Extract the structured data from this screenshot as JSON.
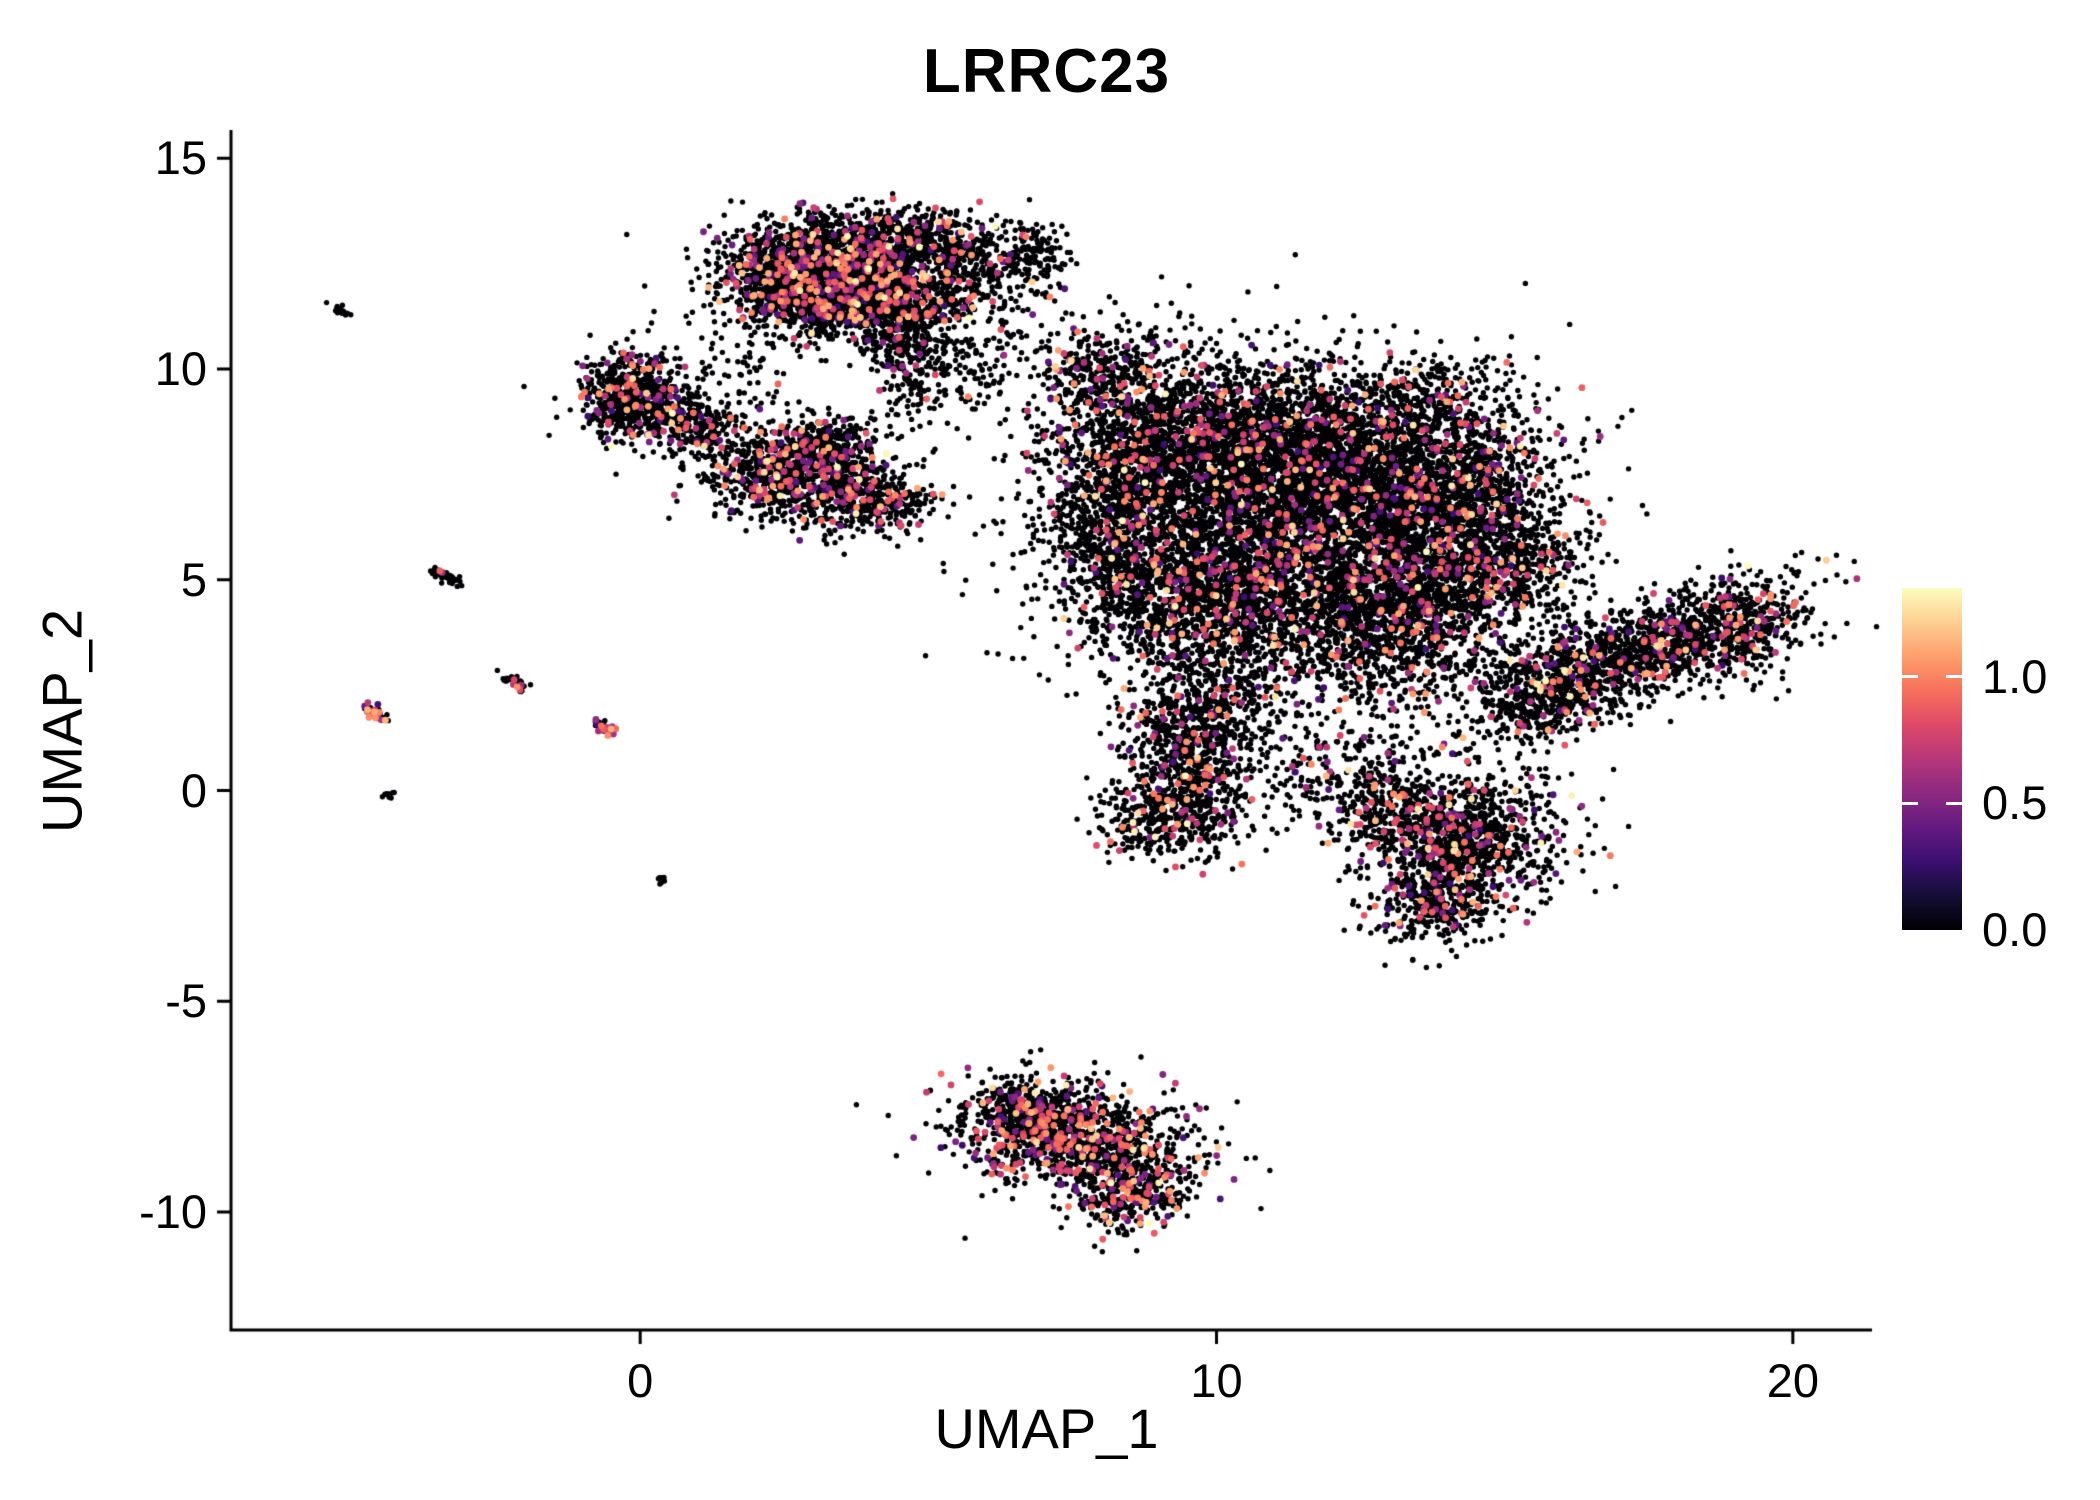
{
  "chart_data": {
    "type": "scatter",
    "title": "LRRC23",
    "xlabel": "UMAP_1",
    "ylabel": "UMAP_2",
    "xlim": [
      -7.1,
      21.2
    ],
    "ylim": [
      -12.8,
      16.1
    ],
    "x_ticks": [
      0,
      10,
      20
    ],
    "y_ticks": [
      -10,
      -5,
      0,
      5,
      10,
      15
    ],
    "grid": false,
    "background": "#ffffff",
    "axis_color": "#000000",
    "point_color_zero": "#000004",
    "colorbar": {
      "position": "right",
      "min": 0,
      "max": 1.35,
      "ticks": [
        1.0,
        0.5,
        0.0
      ],
      "tick_labels": [
        "1.0",
        "0.5",
        "0.0"
      ],
      "colormap": "magma",
      "colors": [
        "#000004",
        "#140e36",
        "#3b0f70",
        "#641a80",
        "#8c2981",
        "#b73779",
        "#de4968",
        "#f7705c",
        "#fe9f6d",
        "#fecf92",
        "#fcfdbf"
      ]
    },
    "clusters_format": [
      "center_x",
      "center_y",
      "sd_x",
      "sd_y",
      "rotation_deg",
      "n_points",
      "expressing_fraction"
    ],
    "clusters": [
      [
        3.3,
        12.3,
        0.9,
        0.65,
        0,
        1800,
        0.13
      ],
      [
        4.3,
        11.7,
        0.7,
        0.55,
        0,
        900,
        0.13
      ],
      [
        2.6,
        11.9,
        0.5,
        0.5,
        0,
        500,
        0.1
      ],
      [
        4.6,
        13.2,
        0.6,
        0.3,
        0,
        300,
        0.08
      ],
      [
        4.7,
        10.3,
        0.35,
        0.7,
        10,
        260,
        0.06
      ],
      [
        5.7,
        12.6,
        0.5,
        0.45,
        0,
        250,
        0.08
      ],
      [
        6.9,
        12.7,
        0.3,
        0.4,
        0,
        130,
        0.05
      ],
      [
        6.3,
        11.0,
        0.7,
        0.8,
        0,
        100,
        0.04
      ],
      [
        5.6,
        9.8,
        0.5,
        0.5,
        0,
        70,
        0.05
      ],
      [
        1.8,
        9.9,
        0.5,
        0.5,
        0,
        60,
        0.05
      ],
      [
        -0.05,
        9.3,
        0.5,
        0.55,
        0,
        650,
        0.1
      ],
      [
        0.9,
        8.7,
        0.45,
        0.3,
        -20,
        220,
        0.1
      ],
      [
        2.6,
        7.5,
        0.75,
        0.55,
        -10,
        950,
        0.14
      ],
      [
        4.1,
        6.9,
        0.5,
        0.35,
        -15,
        320,
        0.12
      ],
      [
        3.3,
        8.3,
        0.4,
        0.3,
        0,
        200,
        0.1
      ],
      [
        8.9,
        7.8,
        1.0,
        1.2,
        0,
        1400,
        0.07
      ],
      [
        10.6,
        8.3,
        1.3,
        1.0,
        0,
        1700,
        0.07
      ],
      [
        12.5,
        7.6,
        1.3,
        1.1,
        0,
        1900,
        0.08
      ],
      [
        11.4,
        5.6,
        1.5,
        1.1,
        0,
        1900,
        0.08
      ],
      [
        9.6,
        4.6,
        1.1,
        0.9,
        0,
        1100,
        0.07
      ],
      [
        12.6,
        3.6,
        1.2,
        0.8,
        0,
        900,
        0.08
      ],
      [
        14.3,
        6.8,
        0.8,
        1.2,
        -20,
        1000,
        0.09
      ],
      [
        15.2,
        5.3,
        0.6,
        0.8,
        0,
        450,
        0.09
      ],
      [
        13.6,
        4.7,
        0.7,
        0.7,
        0,
        500,
        0.08
      ],
      [
        11.0,
        6.2,
        2.3,
        2.0,
        0,
        700,
        0.06
      ],
      [
        8.0,
        9.9,
        0.6,
        0.6,
        0,
        300,
        0.08
      ],
      [
        8.2,
        5.9,
        0.5,
        0.9,
        0,
        400,
        0.07
      ],
      [
        13.5,
        9.3,
        0.9,
        0.5,
        0,
        250,
        0.08
      ],
      [
        9.5,
        0.9,
        0.55,
        0.9,
        0,
        700,
        0.1
      ],
      [
        9.2,
        -0.7,
        0.65,
        0.5,
        0,
        380,
        0.1
      ],
      [
        10.1,
        2.4,
        0.7,
        0.6,
        0,
        250,
        0.07
      ],
      [
        11.8,
        0.6,
        0.9,
        0.7,
        0,
        220,
        0.07
      ],
      [
        14.3,
        -1.2,
        0.85,
        0.8,
        0,
        1100,
        0.12
      ],
      [
        13.8,
        -2.7,
        0.5,
        0.45,
        30,
        320,
        0.1
      ],
      [
        12.9,
        -0.3,
        0.5,
        0.5,
        0,
        250,
        0.1
      ],
      [
        17.3,
        3.3,
        1.5,
        0.55,
        25,
        1500,
        0.1
      ],
      [
        15.6,
        2.0,
        0.5,
        0.4,
        25,
        250,
        0.08
      ],
      [
        19.2,
        3.8,
        0.35,
        0.6,
        0,
        200,
        0.1
      ],
      [
        7.5,
        -8.2,
        0.95,
        0.6,
        -10,
        1200,
        0.17
      ],
      [
        8.5,
        -9.5,
        0.5,
        0.5,
        -20,
        380,
        0.17
      ],
      [
        6.6,
        -7.5,
        0.45,
        0.3,
        0,
        220,
        0.15
      ],
      [
        -5.2,
        11.4,
        0.1,
        0.04,
        -35,
        22,
        0.0
      ],
      [
        -3.4,
        5.1,
        0.16,
        0.06,
        -38,
        45,
        0.05
      ],
      [
        -4.6,
        1.85,
        0.14,
        0.06,
        -38,
        40,
        0.45
      ],
      [
        -2.15,
        2.55,
        0.14,
        0.06,
        -38,
        40,
        0.15
      ],
      [
        -0.6,
        1.5,
        0.14,
        0.06,
        -38,
        40,
        0.5
      ],
      [
        -4.4,
        -0.1,
        0.06,
        0.04,
        0,
        10,
        0.0
      ],
      [
        0.35,
        -2.1,
        0.05,
        0.04,
        0,
        8,
        0.0
      ]
    ]
  }
}
